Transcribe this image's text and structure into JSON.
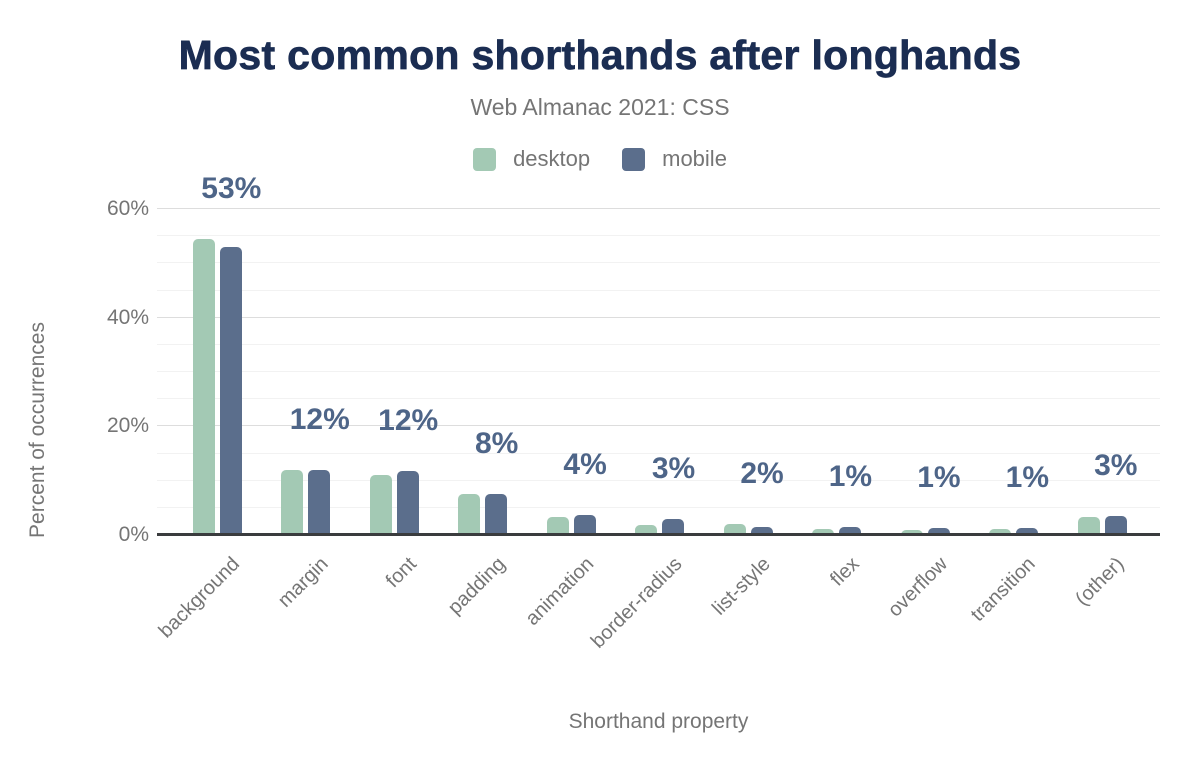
{
  "chart_data": {
    "type": "bar",
    "title": "Most common shorthands after longhands",
    "subtitle": "Web Almanac 2021: CSS",
    "xlabel": "Shorthand property",
    "ylabel": "Percent of occurrences",
    "categories": [
      "background",
      "margin",
      "font",
      "padding",
      "animation",
      "border-radius",
      "list-style",
      "flex",
      "overflow",
      "transition",
      "(other)"
    ],
    "series": [
      {
        "name": "desktop",
        "color": "#a3c9b4",
        "values": [
          54.5,
          11.9,
          11.1,
          7.5,
          3.4,
          1.8,
          2.0,
          1.1,
          0.9,
          1.1,
          3.3
        ]
      },
      {
        "name": "mobile",
        "color": "#5b6e8c",
        "values": [
          53.0,
          11.9,
          11.7,
          7.5,
          3.6,
          2.9,
          1.5,
          1.4,
          1.3,
          1.2,
          3.5
        ]
      }
    ],
    "value_labels": [
      "53%",
      "12%",
      "12%",
      "8%",
      "4%",
      "3%",
      "2%",
      "1%",
      "1%",
      "1%",
      "3%"
    ],
    "value_label_color": "#4e6588",
    "y_ticks": [
      "0%",
      "20%",
      "40%",
      "60%"
    ],
    "ylim": [
      0,
      60
    ],
    "grid": "horizontal, major every 20%, minor every 5%",
    "legend_position": "top",
    "axis_color": "#3a3c3e",
    "text_color": "#757575",
    "title_color": "#1b2d52"
  }
}
